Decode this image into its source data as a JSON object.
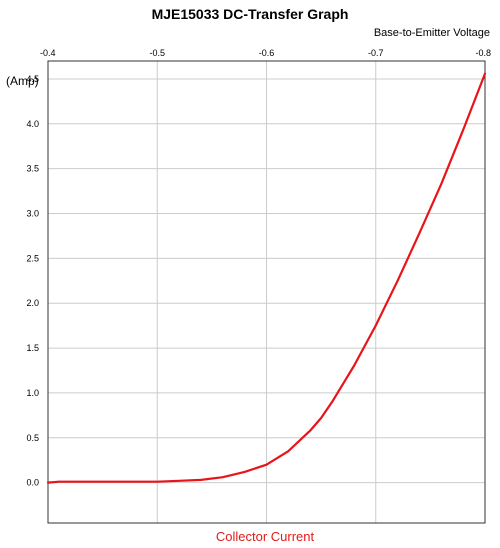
{
  "chart_data": {
    "type": "line",
    "title": "MJE15033 DC-Transfer Graph",
    "xlabel": "Base-to-Emitter Voltage",
    "ylabel": "Collector Current",
    "y_unit": "(Amp)",
    "xlim": [
      -0.4,
      -0.8
    ],
    "ylim": [
      -0.45,
      4.7
    ],
    "x_ticks": [
      -0.4,
      -0.5,
      -0.6,
      -0.7,
      -0.8
    ],
    "y_ticks": [
      0.0,
      0.5,
      1.0,
      1.5,
      2.0,
      2.5,
      3.0,
      3.5,
      4.0,
      4.5
    ],
    "grid": true,
    "series": [
      {
        "color": "#e8141a",
        "x": [
          -0.4,
          -0.41,
          -0.45,
          -0.5,
          -0.52,
          -0.54,
          -0.56,
          -0.58,
          -0.6,
          -0.62,
          -0.64,
          -0.65,
          -0.66,
          -0.68,
          -0.7,
          -0.72,
          -0.74,
          -0.76,
          -0.78,
          -0.8
        ],
        "y": [
          0.0,
          0.01,
          0.01,
          0.01,
          0.02,
          0.03,
          0.06,
          0.12,
          0.2,
          0.35,
          0.58,
          0.72,
          0.9,
          1.3,
          1.75,
          2.25,
          2.78,
          3.33,
          3.93,
          4.56
        ]
      }
    ]
  }
}
